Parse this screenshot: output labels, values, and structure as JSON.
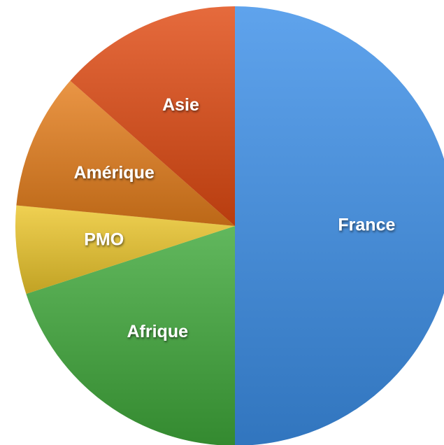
{
  "chart_data": {
    "type": "pie",
    "categories": [
      "France",
      "Afrique",
      "PMO",
      "Amérique",
      "Asie"
    ],
    "values": [
      50,
      20,
      6.5,
      10,
      13.5
    ],
    "colors": [
      "#3c8fe8",
      "#3fa83a",
      "#ecc62c",
      "#e57e1c",
      "#e04a12"
    ]
  }
}
